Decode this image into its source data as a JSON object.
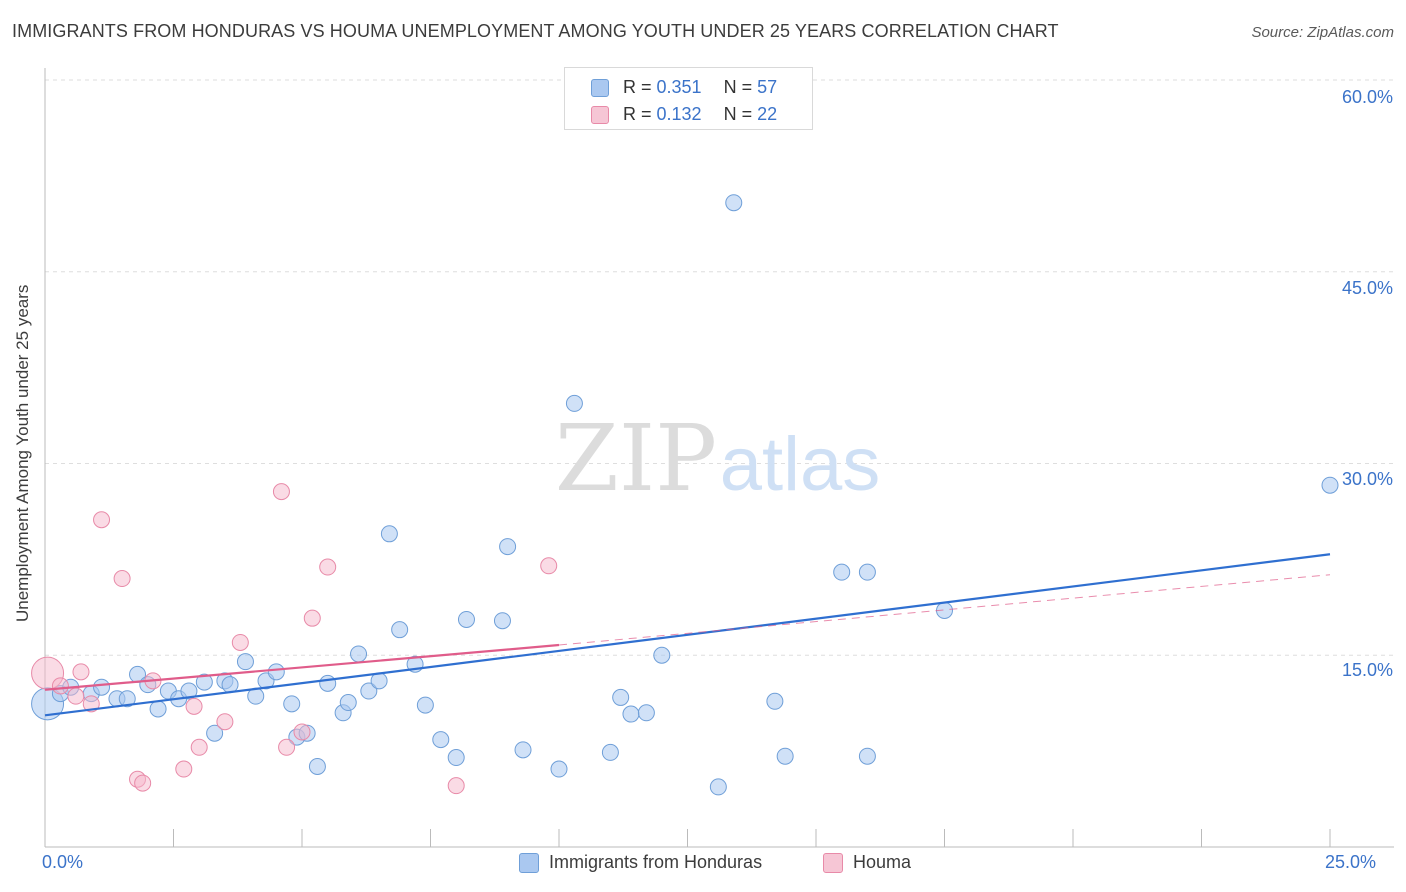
{
  "title": "IMMIGRANTS FROM HONDURAS VS HOUMA UNEMPLOYMENT AMONG YOUTH UNDER 25 YEARS CORRELATION CHART",
  "source": "Source: ZipAtlas.com",
  "watermark": {
    "zip": "ZIP",
    "atlas": "atlas"
  },
  "colors": {
    "blue_fill": "#aac8f0",
    "blue_stroke": "#6f9fd8",
    "blue_line": "#2f6fd0",
    "pink_fill": "#f6b8cc",
    "pink_stroke": "#e88aa8",
    "pink_line": "#e05c8a",
    "axis_text": "#3b73c9",
    "grid": "#dddddd"
  },
  "legend": {
    "rows": [
      {
        "r_label": "R = ",
        "r_value": "0.351",
        "n_label": "N = ",
        "n_value": "57"
      },
      {
        "r_label": "R = ",
        "r_value": "0.132",
        "n_label": "N = ",
        "n_value": "22"
      }
    ]
  },
  "chart_data": {
    "type": "scatter",
    "title": "IMMIGRANTS FROM HONDURAS VS HOUMA UNEMPLOYMENT AMONG YOUTH UNDER 25 YEARS CORRELATION CHART",
    "xlabel": "",
    "ylabel": "Unemployment Among Youth under 25 years",
    "xlim": [
      0,
      25
    ],
    "ylim": [
      0,
      60
    ],
    "x_tick_labels": [
      "0.0%",
      "25.0%"
    ],
    "y_ticks": [
      15,
      30,
      45,
      60
    ],
    "y_tick_labels": [
      "15.0%",
      "30.0%",
      "45.0%",
      "60.0%"
    ],
    "grid": true,
    "series": [
      {
        "name": "Immigrants from Honduras",
        "color": "#aac8f0",
        "r": 0.351,
        "n": 57,
        "trend": {
          "x": [
            0,
            25
          ],
          "y": [
            10.3,
            22.9
          ]
        },
        "points": [
          {
            "x": 0.05,
            "y": 11.2,
            "big": true
          },
          {
            "x": 0.3,
            "y": 12.0
          },
          {
            "x": 0.5,
            "y": 12.5
          },
          {
            "x": 0.9,
            "y": 12.0
          },
          {
            "x": 1.1,
            "y": 12.5
          },
          {
            "x": 1.4,
            "y": 11.6
          },
          {
            "x": 1.6,
            "y": 11.6
          },
          {
            "x": 1.8,
            "y": 13.5
          },
          {
            "x": 2.0,
            "y": 12.7
          },
          {
            "x": 2.2,
            "y": 10.8
          },
          {
            "x": 2.4,
            "y": 12.2
          },
          {
            "x": 2.6,
            "y": 11.6
          },
          {
            "x": 2.8,
            "y": 12.2
          },
          {
            "x": 3.1,
            "y": 12.9
          },
          {
            "x": 3.3,
            "y": 8.9
          },
          {
            "x": 3.5,
            "y": 13.0
          },
          {
            "x": 3.6,
            "y": 12.7
          },
          {
            "x": 3.9,
            "y": 14.5
          },
          {
            "x": 4.1,
            "y": 11.8
          },
          {
            "x": 4.3,
            "y": 13.0
          },
          {
            "x": 4.5,
            "y": 13.7
          },
          {
            "x": 4.8,
            "y": 11.2
          },
          {
            "x": 4.9,
            "y": 8.6
          },
          {
            "x": 5.1,
            "y": 8.9
          },
          {
            "x": 5.3,
            "y": 6.3
          },
          {
            "x": 5.5,
            "y": 12.8
          },
          {
            "x": 5.8,
            "y": 10.5
          },
          {
            "x": 5.9,
            "y": 11.3
          },
          {
            "x": 6.1,
            "y": 15.1
          },
          {
            "x": 6.3,
            "y": 12.2
          },
          {
            "x": 6.5,
            "y": 13.0
          },
          {
            "x": 6.7,
            "y": 24.5
          },
          {
            "x": 6.9,
            "y": 17.0
          },
          {
            "x": 7.2,
            "y": 14.3
          },
          {
            "x": 7.4,
            "y": 11.1
          },
          {
            "x": 7.7,
            "y": 8.4
          },
          {
            "x": 8.0,
            "y": 7.0
          },
          {
            "x": 8.2,
            "y": 17.8
          },
          {
            "x": 8.9,
            "y": 17.7
          },
          {
            "x": 9.0,
            "y": 23.5
          },
          {
            "x": 9.3,
            "y": 7.6
          },
          {
            "x": 10.0,
            "y": 6.1
          },
          {
            "x": 10.3,
            "y": 34.7
          },
          {
            "x": 11.0,
            "y": 7.4
          },
          {
            "x": 11.2,
            "y": 11.7
          },
          {
            "x": 11.4,
            "y": 10.4
          },
          {
            "x": 11.7,
            "y": 10.5
          },
          {
            "x": 12.0,
            "y": 15.0
          },
          {
            "x": 13.1,
            "y": 4.7
          },
          {
            "x": 13.4,
            "y": 50.4
          },
          {
            "x": 14.2,
            "y": 11.4
          },
          {
            "x": 14.4,
            "y": 7.1
          },
          {
            "x": 15.5,
            "y": 21.5
          },
          {
            "x": 16.0,
            "y": 21.5
          },
          {
            "x": 16.0,
            "y": 7.1
          },
          {
            "x": 17.5,
            "y": 18.5
          },
          {
            "x": 25.0,
            "y": 28.3
          }
        ]
      },
      {
        "name": "Houma",
        "color": "#f6b8cc",
        "r": 0.132,
        "n": 22,
        "trend": {
          "x": [
            0,
            10
          ],
          "y": [
            12.3,
            15.8
          ]
        },
        "trend_extension": {
          "x": [
            10,
            25
          ],
          "y": [
            15.8,
            21.3
          ]
        },
        "points": [
          {
            "x": 0.05,
            "y": 13.6,
            "big": true
          },
          {
            "x": 0.3,
            "y": 12.6
          },
          {
            "x": 0.7,
            "y": 13.7
          },
          {
            "x": 0.9,
            "y": 11.2
          },
          {
            "x": 1.1,
            "y": 25.6
          },
          {
            "x": 1.5,
            "y": 21.0
          },
          {
            "x": 1.8,
            "y": 5.3
          },
          {
            "x": 1.9,
            "y": 5.0
          },
          {
            "x": 2.1,
            "y": 13.0
          },
          {
            "x": 2.7,
            "y": 6.1
          },
          {
            "x": 2.9,
            "y": 11.0
          },
          {
            "x": 3.0,
            "y": 7.8
          },
          {
            "x": 3.5,
            "y": 9.8
          },
          {
            "x": 3.8,
            "y": 16.0
          },
          {
            "x": 4.6,
            "y": 27.8
          },
          {
            "x": 4.7,
            "y": 7.8
          },
          {
            "x": 5.0,
            "y": 9.0
          },
          {
            "x": 5.2,
            "y": 17.9
          },
          {
            "x": 5.5,
            "y": 21.9
          },
          {
            "x": 8.0,
            "y": 4.8
          },
          {
            "x": 9.8,
            "y": 22.0
          },
          {
            "x": 0.6,
            "y": 11.8
          }
        ]
      }
    ]
  }
}
